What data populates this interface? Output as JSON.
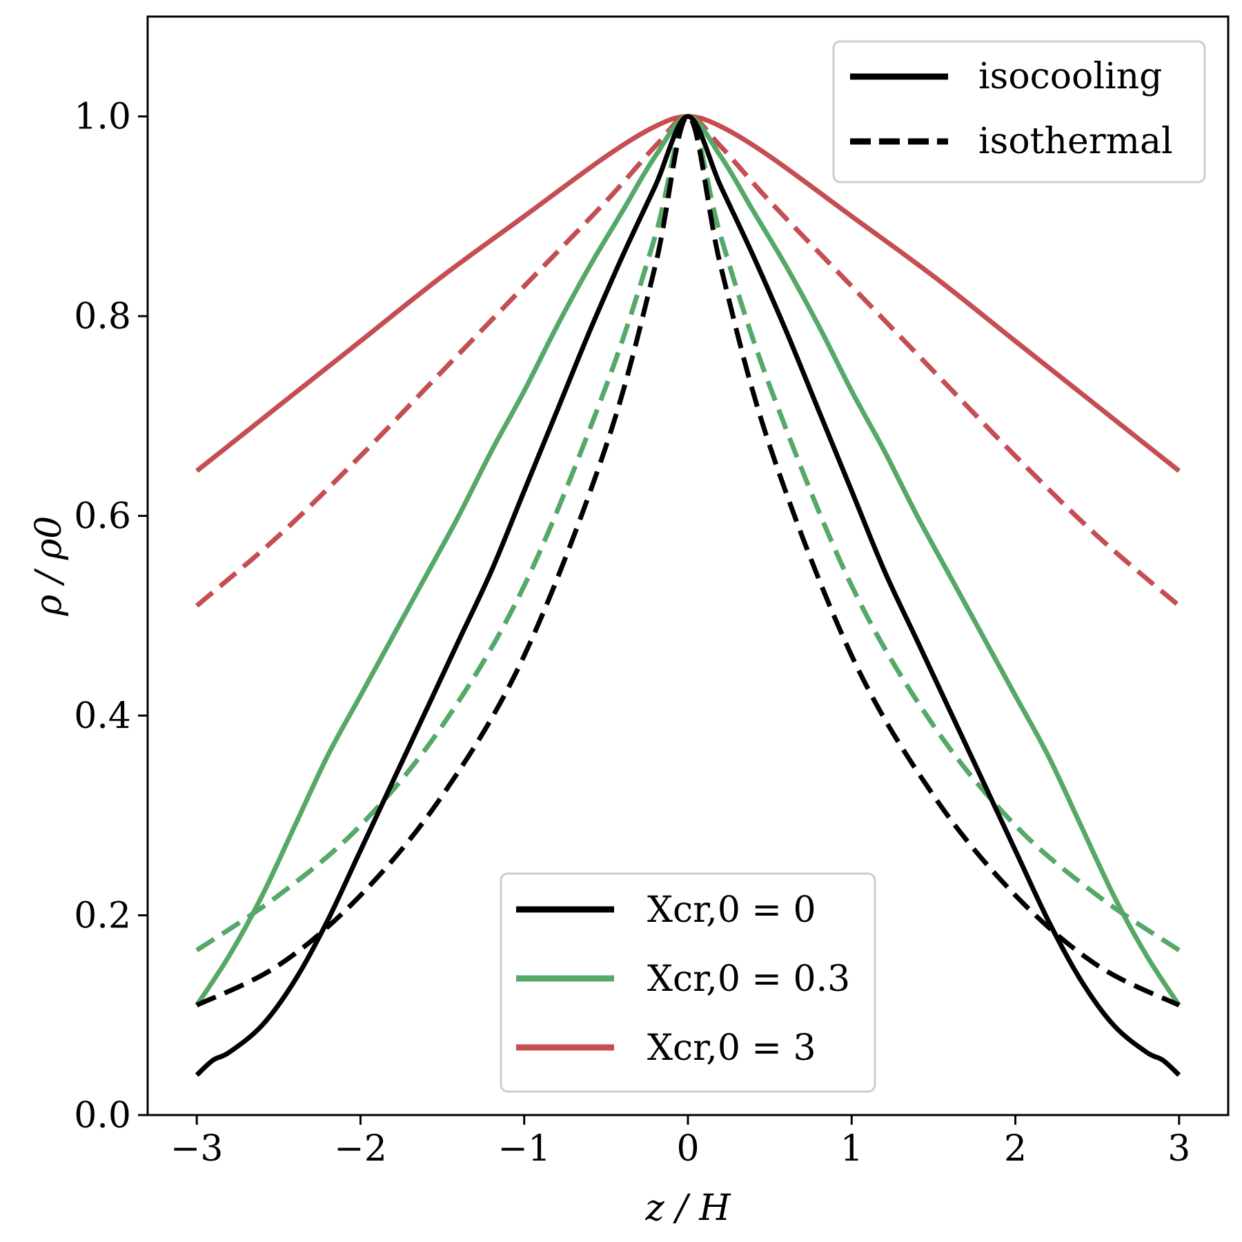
{
  "chart_data": {
    "type": "line",
    "xlabel": "z / H",
    "ylabel": "ρ / ρ0",
    "xlim": [
      -3.3,
      3.3
    ],
    "ylim": [
      0.0,
      1.1
    ],
    "xticks": [
      -3,
      -2,
      -1,
      0,
      1,
      2,
      3
    ],
    "xtick_labels": [
      "−3",
      "−2",
      "−1",
      "0",
      "1",
      "2",
      "3"
    ],
    "yticks": [
      0.0,
      0.2,
      0.4,
      0.6,
      0.8,
      1.0
    ],
    "ytick_labels": [
      "0.0",
      "0.2",
      "0.4",
      "0.6",
      "0.8",
      "1.0"
    ],
    "grid": false,
    "legends": [
      {
        "placement": "top-right",
        "entries": [
          {
            "label": "isocooling",
            "color": "#000000",
            "style": "solid"
          },
          {
            "label": "isothermal",
            "color": "#000000",
            "style": "dashed"
          }
        ]
      },
      {
        "placement": "lower-center",
        "entries": [
          {
            "label": "Xcr,0 = 0",
            "color": "#000000",
            "style": "solid"
          },
          {
            "label": "Xcr,0 = 0.3",
            "color": "#55a868",
            "style": "solid"
          },
          {
            "label": "Xcr,0 = 3",
            "color": "#c44e52",
            "style": "solid"
          }
        ]
      }
    ],
    "series": [
      {
        "model": "isocooling",
        "xcr0": "0",
        "color": "#000000",
        "style": "solid",
        "x": [
          -3.0,
          -2.9,
          -2.8,
          -2.6,
          -2.4,
          -2.2,
          -2.0,
          -1.8,
          -1.6,
          -1.4,
          -1.2,
          -1.0,
          -0.8,
          -0.6,
          -0.4,
          -0.2,
          0.0,
          0.2,
          0.4,
          0.6,
          0.8,
          1.0,
          1.2,
          1.4,
          1.6,
          1.8,
          2.0,
          2.2,
          2.4,
          2.6,
          2.8,
          2.9,
          3.0
        ],
        "values": [
          0.04,
          0.055,
          0.063,
          0.09,
          0.135,
          0.195,
          0.265,
          0.335,
          0.405,
          0.475,
          0.545,
          0.625,
          0.705,
          0.785,
          0.86,
          0.93,
          1.0,
          0.93,
          0.86,
          0.785,
          0.705,
          0.625,
          0.545,
          0.475,
          0.405,
          0.335,
          0.265,
          0.195,
          0.135,
          0.09,
          0.063,
          0.055,
          0.04
        ]
      },
      {
        "model": "isothermal",
        "xcr0": "0",
        "color": "#000000",
        "style": "dashed",
        "x": [
          -3.0,
          -2.5,
          -2.0,
          -1.5,
          -1.0,
          -0.5,
          -0.2,
          0.0,
          0.2,
          0.5,
          1.0,
          1.5,
          2.0,
          2.5,
          3.0
        ],
        "values": [
          0.11,
          0.15,
          0.22,
          0.32,
          0.46,
          0.67,
          0.85,
          1.0,
          0.85,
          0.67,
          0.46,
          0.32,
          0.22,
          0.15,
          0.11
        ]
      },
      {
        "model": "isocooling",
        "xcr0": "0.3",
        "color": "#55a868",
        "style": "solid",
        "x": [
          -3.0,
          -2.8,
          -2.6,
          -2.4,
          -2.2,
          -2.0,
          -1.8,
          -1.6,
          -1.4,
          -1.2,
          -1.0,
          -0.8,
          -0.6,
          -0.4,
          -0.2,
          0.0,
          0.2,
          0.4,
          0.6,
          0.8,
          1.0,
          1.2,
          1.4,
          1.6,
          1.8,
          2.0,
          2.2,
          2.4,
          2.6,
          2.8,
          3.0
        ],
        "values": [
          0.11,
          0.16,
          0.22,
          0.29,
          0.36,
          0.42,
          0.48,
          0.54,
          0.6,
          0.665,
          0.725,
          0.79,
          0.85,
          0.905,
          0.96,
          1.0,
          0.96,
          0.905,
          0.85,
          0.79,
          0.725,
          0.665,
          0.6,
          0.54,
          0.48,
          0.42,
          0.36,
          0.29,
          0.22,
          0.16,
          0.11
        ]
      },
      {
        "model": "isothermal",
        "xcr0": "0.3",
        "color": "#55a868",
        "style": "dashed",
        "x": [
          -3.0,
          -2.5,
          -2.0,
          -1.5,
          -1.0,
          -0.5,
          -0.2,
          0.0,
          0.2,
          0.5,
          1.0,
          1.5,
          2.0,
          2.5,
          3.0
        ],
        "values": [
          0.165,
          0.22,
          0.29,
          0.39,
          0.53,
          0.73,
          0.88,
          1.0,
          0.88,
          0.73,
          0.53,
          0.39,
          0.29,
          0.22,
          0.165
        ]
      },
      {
        "model": "isocooling",
        "xcr0": "3",
        "color": "#c44e52",
        "style": "solid",
        "x": [
          -3.0,
          -2.5,
          -2.0,
          -1.5,
          -1.0,
          -0.5,
          -0.2,
          0.0,
          0.2,
          0.5,
          1.0,
          1.5,
          2.0,
          2.5,
          3.0
        ],
        "values": [
          0.645,
          0.71,
          0.775,
          0.84,
          0.9,
          0.96,
          0.99,
          1.0,
          0.99,
          0.96,
          0.9,
          0.84,
          0.775,
          0.71,
          0.645
        ]
      },
      {
        "model": "isothermal",
        "xcr0": "3",
        "color": "#c44e52",
        "style": "dashed",
        "x": [
          -3.0,
          -2.5,
          -2.0,
          -1.5,
          -1.0,
          -0.5,
          -0.2,
          0.0,
          0.2,
          0.5,
          1.0,
          1.5,
          2.0,
          2.5,
          3.0
        ],
        "values": [
          0.51,
          0.58,
          0.66,
          0.745,
          0.83,
          0.915,
          0.97,
          1.0,
          0.97,
          0.915,
          0.83,
          0.745,
          0.66,
          0.58,
          0.51
        ]
      }
    ]
  }
}
